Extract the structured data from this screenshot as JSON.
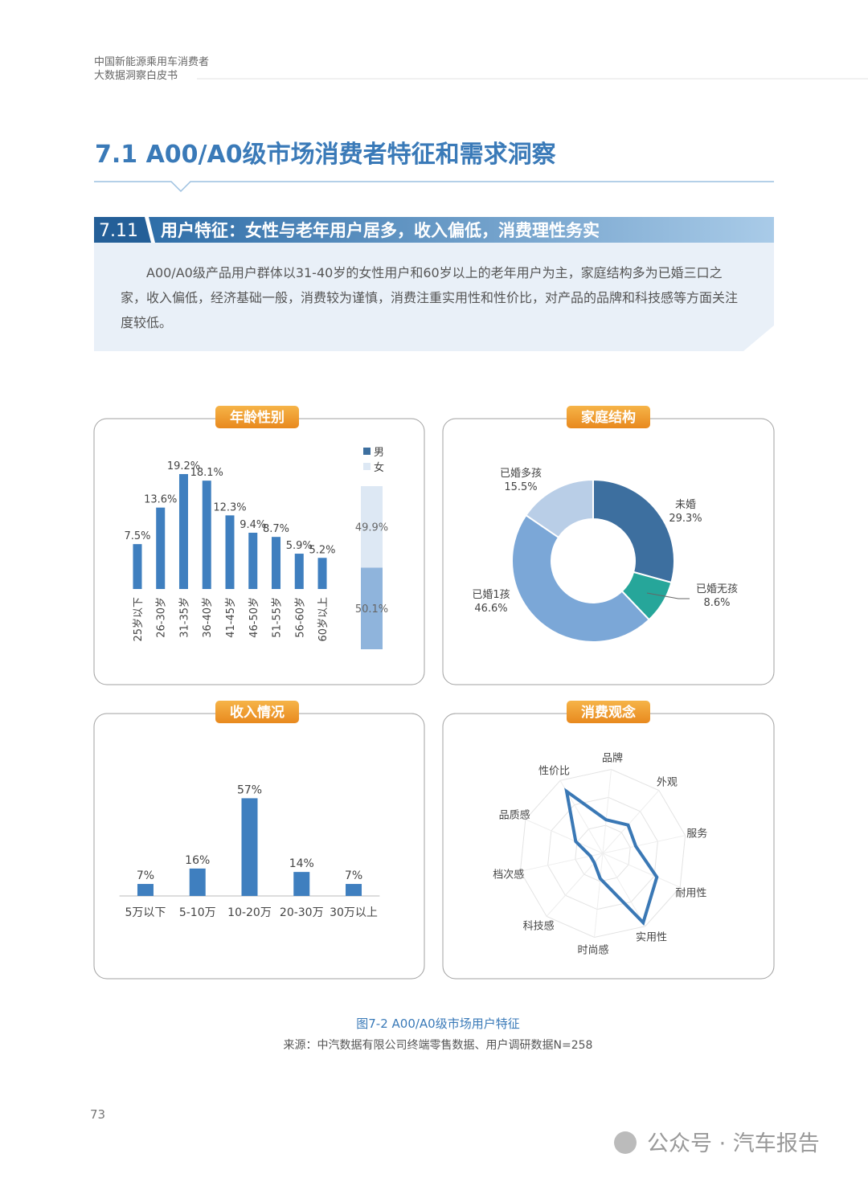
{
  "header": {
    "line1": "中国新能源乘用车消费者",
    "line2": "大数据洞察白皮书"
  },
  "section": {
    "title": "7.1 A00/A0级市场消费者特征和需求洞察"
  },
  "subsection": {
    "number": "7.11",
    "title": "用户特征：女性与老年用户居多，收入偏低，消费理性务实"
  },
  "summary": "A00/A0级产品用户群体以31-40岁的女性用户和60岁以上的老年用户为主，家庭结构多为已婚三口之家，收入偏低，经济基础一般，消费较为谨慎，消费注重实用性和性价比，对产品的品牌和科技感等方面关注度较低。",
  "chart_data": [
    {
      "type": "bar",
      "title": "年龄性别",
      "categories": [
        "25岁以下",
        "26-30岁",
        "31-35岁",
        "36-40岁",
        "41-45岁",
        "46-50岁",
        "51-55岁",
        "56-60岁",
        "60岁以上"
      ],
      "values": [
        7.5,
        13.6,
        19.2,
        18.1,
        12.3,
        9.4,
        8.7,
        5.9,
        5.2
      ],
      "value_labels": [
        "7.5%",
        "13.6%",
        "19.2%",
        "18.1%",
        "12.3%",
        "9.4%",
        "8.7%",
        "5.9%",
        "5.2%"
      ],
      "color": "#3f7fbf",
      "ylim": [
        0,
        20
      ]
    },
    {
      "type": "stacked-bar",
      "series": [
        {
          "name": "男",
          "color": "#8fb4dc",
          "values": [
            50.1
          ],
          "value_labels": [
            "50.1%"
          ]
        },
        {
          "name": "女",
          "color": "#dde8f4",
          "values": [
            49.9
          ],
          "value_labels": [
            "49.9%"
          ]
        }
      ],
      "ylim": [
        0,
        100
      ]
    },
    {
      "type": "donut",
      "title": "家庭结构",
      "categories": [
        "未婚",
        "已婚无孩",
        "已婚1孩",
        "已婚多孩"
      ],
      "values": [
        29.3,
        8.6,
        46.6,
        15.5
      ],
      "value_labels": [
        "29.3%",
        "8.6%",
        "46.6%",
        "15.5%"
      ],
      "colors": [
        "#3d6f9f",
        "#26a69a",
        "#7ba7d7",
        "#b9cee7"
      ]
    },
    {
      "type": "bar",
      "title": "收入情况",
      "categories": [
        "5万以下",
        "5-10万",
        "10-20万",
        "20-30万",
        "30万以上"
      ],
      "values": [
        7,
        16,
        57,
        14,
        7
      ],
      "value_labels": [
        "7%",
        "16%",
        "57%",
        "14%",
        "7%"
      ],
      "color": "#3f7fbf",
      "ylim": [
        0,
        60
      ]
    },
    {
      "type": "radar",
      "title": "消费观念",
      "categories": [
        "品牌",
        "外观",
        "服务",
        "耐用性",
        "实用性",
        "时尚感",
        "科技感",
        "档次感",
        "品质感",
        "性价比"
      ],
      "values": [
        40,
        45,
        40,
        70,
        95,
        30,
        15,
        15,
        35,
        85
      ],
      "color": "#3a78b5",
      "rlim": [
        0,
        100
      ]
    }
  ],
  "figure": {
    "caption": "图7-2 A00/A0级市场用户特征",
    "source": "来源：中汽数据有限公司终端零售数据、用户调研数据N=258"
  },
  "footer": {
    "page": "73",
    "watermark": "公众号 · 汽车报告"
  }
}
